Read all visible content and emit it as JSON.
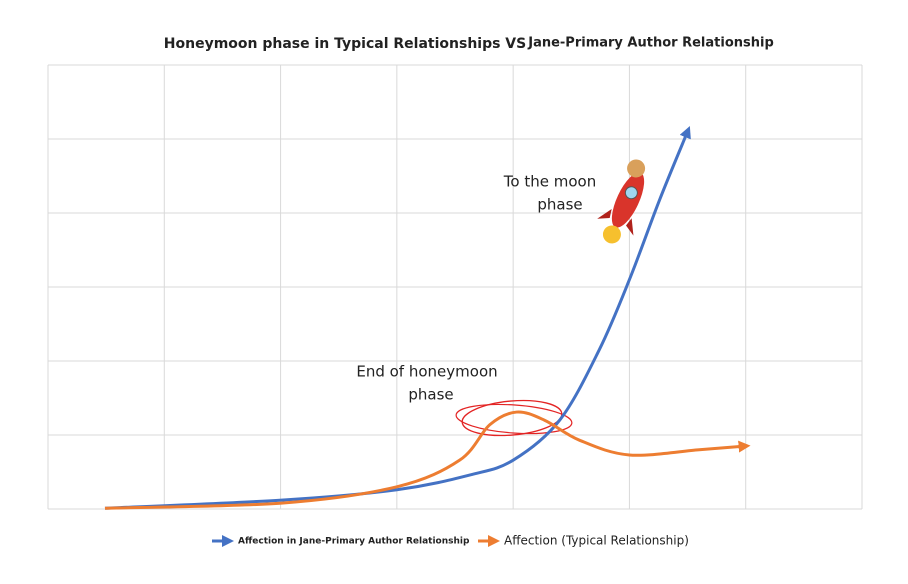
{
  "chart_data": {
    "type": "line",
    "title": [
      "Honeymoon phase in Typical Relationships VS",
      "Jane-Primary Author Relationship"
    ],
    "xlim": [
      0,
      7
    ],
    "ylim": [
      0,
      6
    ],
    "grid": true,
    "series": [
      {
        "name": "Affection in Jane-Primary Author Relationship",
        "color": "#4472c4",
        "x": [
          0.49,
          2.01,
          3.0,
          3.63,
          4.0,
          4.4,
          4.74,
          5.0,
          5.26,
          5.5
        ],
        "values": [
          0.01,
          0.12,
          0.26,
          0.46,
          0.66,
          1.2,
          2.15,
          3.1,
          4.18,
          5.1
        ]
      },
      {
        "name": "Affection (Typical Relationship)",
        "color": "#ed7d31",
        "x": [
          0.49,
          2.01,
          3.0,
          3.54,
          3.8,
          4.03,
          4.27,
          4.57,
          5.0,
          5.6,
          5.99
        ],
        "values": [
          0.01,
          0.08,
          0.3,
          0.66,
          1.14,
          1.31,
          1.2,
          0.93,
          0.73,
          0.8,
          0.85
        ]
      }
    ],
    "annotations": [
      "To the moon",
      "phase",
      "End of honeymoon",
      "phase"
    ]
  }
}
